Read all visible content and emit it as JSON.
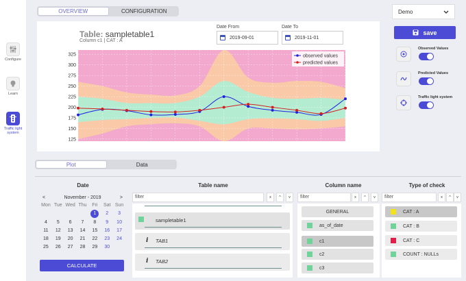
{
  "sidebar": {
    "items": [
      {
        "label": "Configure",
        "icon": "sliders-icon",
        "active": false
      },
      {
        "label": "Learn",
        "icon": "bulb-icon",
        "active": false
      },
      {
        "label": "Traffic light system",
        "icon": "traffic-light-icon",
        "active": true
      }
    ]
  },
  "header": {
    "tabs": [
      {
        "label": "OVERVIEW",
        "active": true
      },
      {
        "label": "CONFIGURATION",
        "active": false
      }
    ]
  },
  "chart_panel": {
    "title_prefix": "Table:",
    "title_name": "sampletable1",
    "subtitle": "Column c1 |  CAT : A",
    "date_from_label": "Date From",
    "date_from_value": "2019-09-01",
    "date_to_label": "Date To",
    "date_to_value": "2019-11-01"
  },
  "chart_data": {
    "type": "line",
    "yticks": [
      125,
      150,
      175,
      200,
      225,
      250,
      275,
      300,
      325
    ],
    "ylim": [
      120,
      335
    ],
    "x": [
      0,
      1,
      2,
      3,
      4,
      5,
      6,
      7,
      8,
      9,
      10,
      11
    ],
    "series": [
      {
        "name": "observed values",
        "color": "#2020e0",
        "values": [
          182,
          195,
          192,
          182,
          183,
          190,
          225,
          202,
          193,
          188,
          183,
          220
        ]
      },
      {
        "name": "predicted values",
        "color": "#d32020",
        "values": [
          198,
          196,
          193,
          190,
          189,
          193,
          200,
          207,
          200,
          193,
          185,
          198
        ]
      }
    ],
    "bands": [
      {
        "color": "#f9c9a8",
        "upper": [
          260,
          250,
          235,
          230,
          228,
          250,
          335,
          270,
          258,
          262,
          260,
          245
        ],
        "lower": [
          125,
          138,
          155,
          160,
          162,
          155,
          120,
          150,
          150,
          148,
          150,
          155
        ]
      },
      {
        "color": "#b4ecd2",
        "upper": [
          225,
          220,
          210,
          210,
          210,
          225,
          262,
          236,
          222,
          220,
          222,
          218
        ],
        "lower": [
          165,
          170,
          172,
          175,
          176,
          168,
          160,
          172,
          174,
          172,
          168,
          175
        ]
      }
    ],
    "background_color": "#f2a9cd",
    "legend_position": "top-right",
    "grid": true
  },
  "right_panel": {
    "select_value": "Demo",
    "save_label": "save",
    "toggles": [
      {
        "label": "Observed Values",
        "icon": "target-icon",
        "on": true
      },
      {
        "label": "Predicted Values",
        "icon": "wave-icon",
        "on": true
      },
      {
        "label": "Traffic light system",
        "icon": "crosshair-icon",
        "on": true
      }
    ]
  },
  "bottom_tabs": [
    {
      "label": "Plot",
      "active": true
    },
    {
      "label": "Data",
      "active": false
    }
  ],
  "columns": {
    "date": "Date",
    "table_name": "Table name",
    "column_name": "Column name",
    "type_of_check": "Type of check"
  },
  "calendar": {
    "prev": "<",
    "next": ">",
    "month": "November - 2019",
    "weekdays": [
      "Mon",
      "Tue",
      "Wed",
      "Thu",
      "Fri",
      "Sat",
      "Sun"
    ],
    "weeks": [
      [
        "",
        "",
        "",
        "",
        "1",
        "2",
        "3"
      ],
      [
        "4",
        "5",
        "6",
        "7",
        "8",
        "9",
        "10"
      ],
      [
        "11",
        "12",
        "13",
        "14",
        "15",
        "16",
        "17"
      ],
      [
        "18",
        "19",
        "20",
        "21",
        "22",
        "23",
        "24"
      ],
      [
        "25",
        "26",
        "27",
        "28",
        "29",
        "30",
        ""
      ]
    ],
    "selected": "1",
    "calculate_label": "CALCULATE"
  },
  "filters": {
    "placeholder": "filter",
    "clear": "x",
    "up": "^",
    "down": "v"
  },
  "tables": [
    {
      "label": "sampletable1",
      "type": "selected"
    },
    {
      "label": "TAB1",
      "type": "info"
    },
    {
      "label": "TAB2",
      "type": "info"
    }
  ],
  "column_names": [
    {
      "label": "GENERAL",
      "sq": "",
      "selected": false
    },
    {
      "label": "as_of_date",
      "sq": "#6fd39a",
      "selected": false
    },
    {
      "label": "c1",
      "sq": "#6fd39a",
      "selected": true
    },
    {
      "label": "c2",
      "sq": "#6fd39a",
      "selected": false
    },
    {
      "label": "c3",
      "sq": "#6fd39a",
      "selected": false
    }
  ],
  "checks": [
    {
      "label": "CAT : A",
      "sq": "#f2e21a",
      "selected": true
    },
    {
      "label": "CAT : B",
      "sq": "#6fd39a",
      "selected": false
    },
    {
      "label": "CAT : C",
      "sq": "#e0204a",
      "selected": false
    },
    {
      "label": "COUNT : NULLs",
      "sq": "#6fd39a",
      "selected": false
    }
  ]
}
